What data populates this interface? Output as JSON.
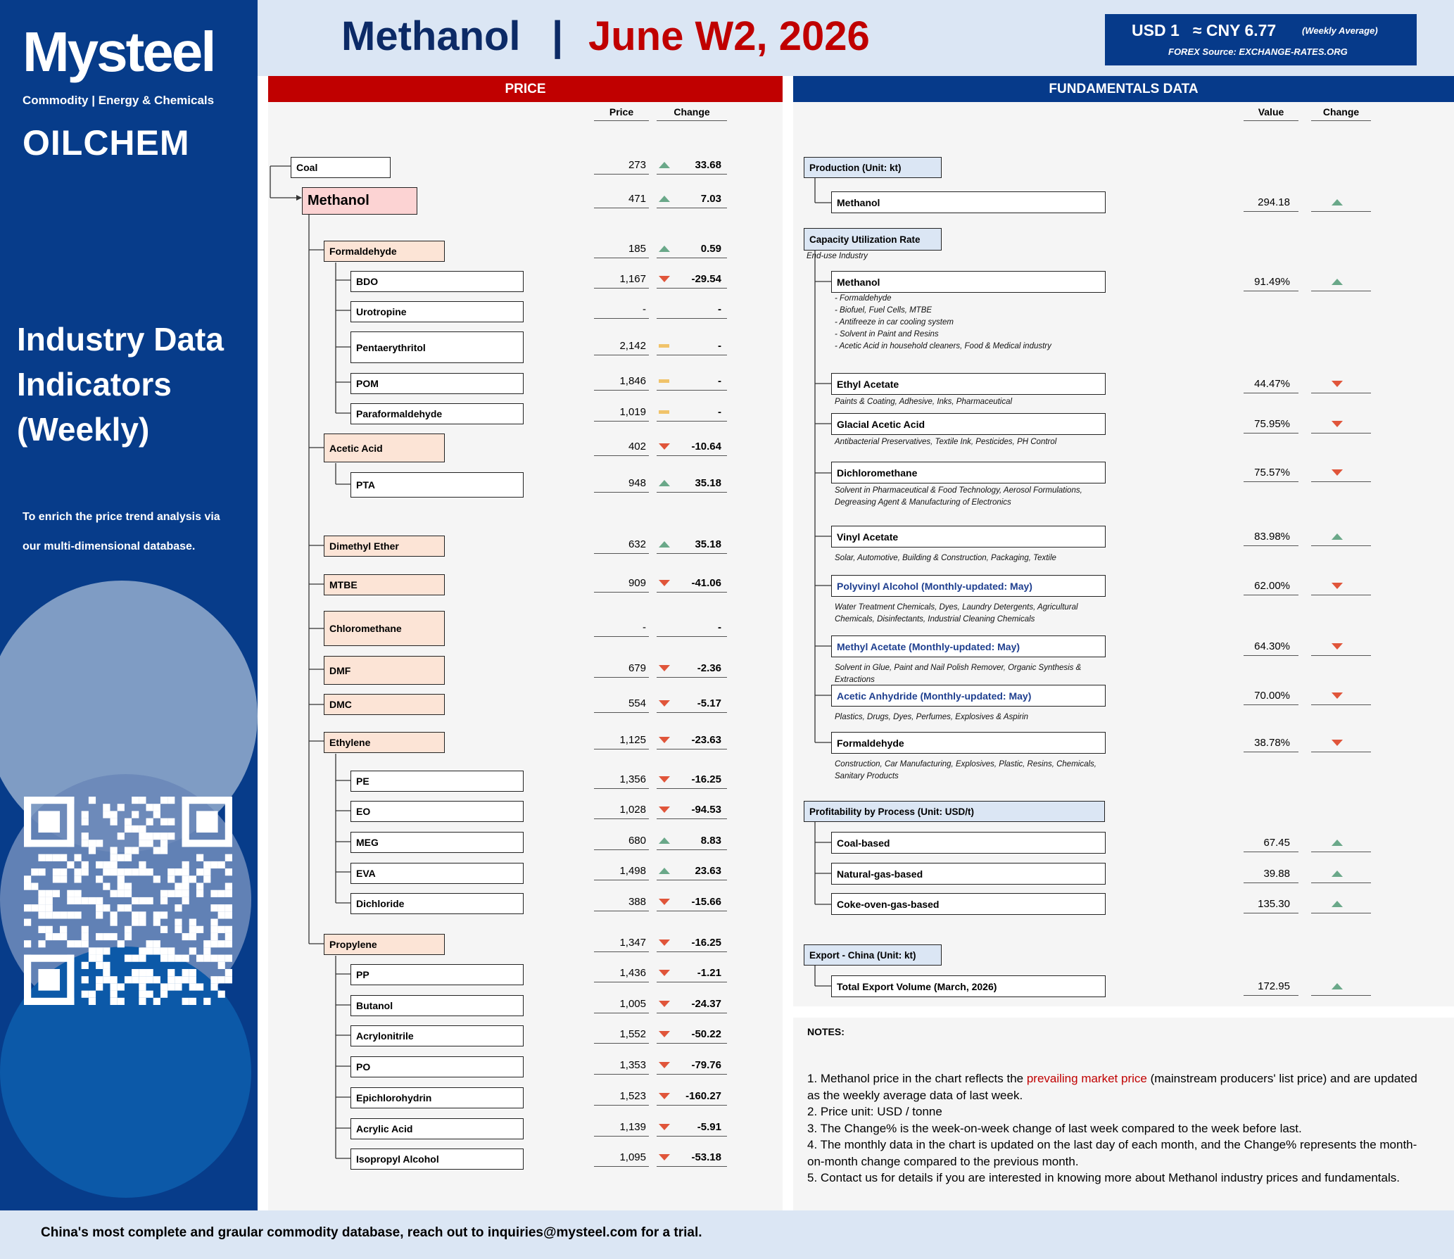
{
  "brand": {
    "logo": "Mysteel",
    "tagline": "Commodity | Energy & Chemicals",
    "sub_brand": "OILCHEM"
  },
  "sidebar": {
    "title_lines": [
      "Industry Data",
      "Indicators",
      "(Weekly)"
    ],
    "desc_lines": [
      "To enrich the price trend analysis via",
      "our multi-dimensional database."
    ]
  },
  "header": {
    "product": "Methanol",
    "separator": "|",
    "period": "June W2, 2026"
  },
  "forex": {
    "rate": "USD 1   ≈ CNY 6.77",
    "note": "(Weekly Average)",
    "source": "FOREX Source: EXCHANGE-RATES.ORG"
  },
  "price": {
    "banner": "PRICE",
    "col_price": "Price",
    "col_change": "Change",
    "rows": [
      {
        "label": "Coal",
        "price": "273",
        "dir": "up",
        "change": "33.68"
      },
      {
        "label": "Methanol",
        "price": "471",
        "dir": "up",
        "change": "7.03"
      },
      {
        "label": "Formaldehyde",
        "price": "185",
        "dir": "up",
        "change": "0.59"
      },
      {
        "label": "BDO",
        "price": "1,167",
        "dir": "down",
        "change": "-29.54"
      },
      {
        "label": "Urotropine",
        "price": "-",
        "dir": "none",
        "change": "-"
      },
      {
        "label": "Pentaerythritol",
        "price": "2,142",
        "dir": "flat",
        "change": "-"
      },
      {
        "label": "POM",
        "price": "1,846",
        "dir": "flat",
        "change": "-"
      },
      {
        "label": "Paraformaldehyde",
        "price": "1,019",
        "dir": "flat",
        "change": "-"
      },
      {
        "label": "Acetic Acid",
        "price": "402",
        "dir": "down",
        "change": "-10.64"
      },
      {
        "label": "PTA",
        "price": "948",
        "dir": "up",
        "change": "35.18"
      },
      {
        "label": "Dimethyl Ether",
        "price": "632",
        "dir": "up",
        "change": "35.18"
      },
      {
        "label": "MTBE",
        "price": "909",
        "dir": "down",
        "change": "-41.06"
      },
      {
        "label": "Chloromethane",
        "price": "-",
        "dir": "none",
        "change": "-"
      },
      {
        "label": "DMF",
        "price": "679",
        "dir": "down",
        "change": "-2.36"
      },
      {
        "label": "DMC",
        "price": "554",
        "dir": "down",
        "change": "-5.17"
      },
      {
        "label": "Ethylene",
        "price": "1,125",
        "dir": "down",
        "change": "-23.63"
      },
      {
        "label": "PE",
        "price": "1,356",
        "dir": "down",
        "change": "-16.25"
      },
      {
        "label": "EO",
        "price": "1,028",
        "dir": "down",
        "change": "-94.53"
      },
      {
        "label": "MEG",
        "price": "680",
        "dir": "up",
        "change": "8.83"
      },
      {
        "label": "EVA",
        "price": "1,498",
        "dir": "up",
        "change": "23.63"
      },
      {
        "label": "Dichloride",
        "price": "388",
        "dir": "down",
        "change": "-15.66"
      },
      {
        "label": "Propylene",
        "price": "1,347",
        "dir": "down",
        "change": "-16.25"
      },
      {
        "label": "PP",
        "price": "1,436",
        "dir": "down",
        "change": "-1.21"
      },
      {
        "label": "Butanol",
        "price": "1,005",
        "dir": "down",
        "change": "-24.37"
      },
      {
        "label": "Acrylonitrile",
        "price": "1,552",
        "dir": "down",
        "change": "-50.22"
      },
      {
        "label": "PO",
        "price": "1,353",
        "dir": "down",
        "change": "-79.76"
      },
      {
        "label": "Epichlorohydrin",
        "price": "1,523",
        "dir": "down",
        "change": "-160.27"
      },
      {
        "label": "Acrylic Acid",
        "price": "1,139",
        "dir": "down",
        "change": "-5.91"
      },
      {
        "label": "Isopropyl Alcohol",
        "price": "1,095",
        "dir": "down",
        "change": "-53.18"
      }
    ]
  },
  "fundamentals": {
    "banner": "FUNDAMENTALS DATA",
    "col_value": "Value",
    "col_change": "Change",
    "sections": [
      {
        "title": "Production (Unit: kt)"
      },
      {
        "title": "Capacity Utilization Rate",
        "subtitle": "End-use Industry"
      },
      {
        "title": "Profitability by Process (Unit: USD/t)"
      },
      {
        "title": "Export - China (Unit: kt)"
      }
    ],
    "rows": [
      {
        "label": "Methanol",
        "value": "294.18",
        "dir": "up",
        "desc": []
      },
      {
        "label": "Methanol",
        "value": "91.49%",
        "dir": "up",
        "desc": [
          "- Formaldehyde",
          "- Biofuel, Fuel Cells, MTBE",
          "- Antifreeze in car cooling system",
          "- Solvent in Paint and Resins",
          "- Acetic Acid in household cleaners, Food & Medical industry"
        ]
      },
      {
        "label": "Ethyl Acetate",
        "value": "44.47%",
        "dir": "down",
        "desc": [
          "Paints & Coating, Adhesive, Inks, Pharmaceutical"
        ]
      },
      {
        "label": "Glacial Acetic Acid",
        "value": "75.95%",
        "dir": "down",
        "desc": [
          "Antibacterial Preservatives, Textile Ink, Pesticides, PH Control"
        ]
      },
      {
        "label": "Dichloromethane",
        "value": "75.57%",
        "dir": "down",
        "desc": [
          "Solvent in Pharmaceutical & Food Technology, Aerosol Formulations,",
          "Degreasing Agent & Manufacturing of Electronics"
        ]
      },
      {
        "label": "Vinyl Acetate",
        "value": "83.98%",
        "dir": "up",
        "desc": [
          "Solar, Automotive, Building & Construction, Packaging, Textile"
        ]
      },
      {
        "label": "Polyvinyl Alcohol (Monthly-updated: May)",
        "value": "62.00%",
        "dir": "down",
        "desc": [
          "Water Treatment Chemicals, Dyes, Laundry Detergents, Agricultural",
          "Chemicals, Disinfectants, Industrial Cleaning Chemicals"
        ]
      },
      {
        "label": "Methyl Acetate  (Monthly-updated: May)",
        "value": "64.30%",
        "dir": "down",
        "desc": [
          "Solvent in Glue, Paint and Nail Polish Remover, Organic Synthesis &",
          "Extractions"
        ]
      },
      {
        "label": "Acetic Anhydride  (Monthly-updated: May)",
        "value": "70.00%",
        "dir": "down",
        "desc": [
          "Plastics, Drugs, Dyes, Perfumes, Explosives & Aspirin"
        ]
      },
      {
        "label": "Formaldehyde",
        "value": "38.78%",
        "dir": "down",
        "desc": [
          "Construction, Car Manufacturing, Explosives, Plastic, Resins, Chemicals,",
          "Sanitary Products"
        ]
      },
      {
        "label": "Coal-based",
        "value": "67.45",
        "dir": "up",
        "desc": []
      },
      {
        "label": "Natural-gas-based",
        "value": "39.88",
        "dir": "up",
        "desc": []
      },
      {
        "label": "Coke-oven-gas-based",
        "value": "135.30",
        "dir": "up",
        "desc": []
      },
      {
        "label": "Total Export Volume (March, 2026)",
        "value": "172.95",
        "dir": "up",
        "desc": []
      }
    ]
  },
  "notes": {
    "title": "NOTES:",
    "n1_pre": "1. Methanol price in the chart reflects the ",
    "n1_hl": "prevailing market price",
    "n1_post": " (mainstream producers' list price) and are updated as the weekly average data of last week.",
    "lines": [
      "2. Price unit: USD / tonne",
      "3. The Change% is the week-on-week change of last week compared to the week before last.",
      "4. The monthly data in the chart is updated on the last day of each month, and the Change% represents the month-on-month change compared to the previous month.",
      "5. Contact us for details if you are interested in knowing more about Methanol industry prices and fundamentals."
    ]
  },
  "footer": {
    "text": "China's most complete and graular commodity database, reach out to inquiries@mysteel.com for a trial."
  },
  "colors": {
    "navy": "#073c8a",
    "red": "#c00000",
    "up": "#6aa889",
    "down": "#e0553a",
    "flat": "#f0c36a",
    "category": "#fce4d6"
  }
}
